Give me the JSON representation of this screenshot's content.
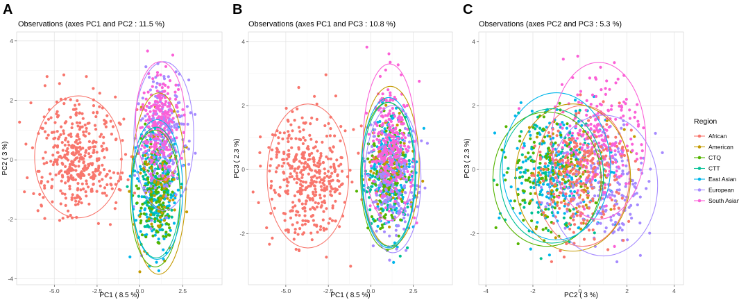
{
  "chart_data": [
    {
      "type": "scatter",
      "panel_label": "A",
      "title": "Observations (axes PC1 and PC2 :  11.5 %)",
      "xlabel": "PC1 ( 8.5 %)",
      "ylabel": "PC2 ( 3 %)",
      "xlim": [
        -7.2,
        4.8
      ],
      "ylim": [
        -4.2,
        4.3
      ],
      "xticks": [
        -5.0,
        -2.5,
        0.0,
        2.5
      ],
      "xtick_labels": [
        "-5.0",
        "-2.5",
        "0.0",
        "2.5"
      ],
      "yticks": [
        -4,
        -2,
        0,
        2,
        4
      ],
      "ytick_labels": [
        "-4",
        "-2",
        "0",
        "2",
        "4"
      ],
      "grid": true,
      "series": [
        {
          "name": "African",
          "cx": -3.6,
          "cy": 0.1,
          "sx": 1.2,
          "sy": 0.95,
          "rx": 2.55,
          "ry": 2.05,
          "n": 420
        },
        {
          "name": "American",
          "cx": 1.1,
          "cy": -0.8,
          "sx": 0.65,
          "sy": 1.15,
          "rx": 1.6,
          "ry": 3.05,
          "n": 90
        },
        {
          "name": "CTQ",
          "cx": 0.9,
          "cy": -1.3,
          "sx": 0.6,
          "sy": 0.9,
          "rx": 1.45,
          "ry": 2.3,
          "n": 130
        },
        {
          "name": "CTT",
          "cx": 0.95,
          "cy": -1.1,
          "sx": 0.6,
          "sy": 0.85,
          "rx": 1.4,
          "ry": 2.2,
          "n": 110
        },
        {
          "name": "East Asian",
          "cx": 1.0,
          "cy": -1.0,
          "sx": 0.65,
          "sy": 0.95,
          "rx": 1.5,
          "ry": 2.35,
          "n": 220
        },
        {
          "name": "European",
          "cx": 1.4,
          "cy": 0.8,
          "sx": 0.7,
          "sy": 1.0,
          "rx": 1.75,
          "ry": 2.5,
          "n": 230
        },
        {
          "name": "South Asian",
          "cx": 1.2,
          "cy": 1.3,
          "sx": 0.55,
          "sy": 0.75,
          "rx": 1.45,
          "ry": 2.0,
          "n": 230
        }
      ]
    },
    {
      "type": "scatter",
      "panel_label": "B",
      "title": "Observations (axes PC1 and PC3 :  10.8 %)",
      "xlabel": "PC1 ( 8.5 %)",
      "ylabel": "PC3 ( 2.3 %)",
      "xlim": [
        -7.2,
        4.8
      ],
      "ylim": [
        -3.6,
        4.3
      ],
      "xticks": [
        -5.0,
        -2.5,
        0.0,
        2.5
      ],
      "xtick_labels": [
        "-5.0",
        "-2.5",
        "0.0",
        "2.5"
      ],
      "yticks": [
        -2,
        0,
        2,
        4
      ],
      "ytick_labels": [
        "-2",
        "0",
        "2",
        "4"
      ],
      "grid": true,
      "series": [
        {
          "name": "African",
          "cx": -3.7,
          "cy": -0.2,
          "sx": 1.15,
          "sy": 1.0,
          "rx": 2.4,
          "ry": 2.25,
          "n": 420
        },
        {
          "name": "American",
          "cx": 1.15,
          "cy": 0.1,
          "sx": 0.65,
          "sy": 0.95,
          "rx": 1.7,
          "ry": 2.5,
          "n": 90
        },
        {
          "name": "CTQ",
          "cx": 1.0,
          "cy": -0.2,
          "sx": 0.62,
          "sy": 0.9,
          "rx": 1.6,
          "ry": 2.3,
          "n": 130
        },
        {
          "name": "CTT",
          "cx": 1.05,
          "cy": -0.15,
          "sx": 0.6,
          "sy": 0.88,
          "rx": 1.55,
          "ry": 2.25,
          "n": 110
        },
        {
          "name": "East Asian",
          "cx": 1.05,
          "cy": -0.1,
          "sx": 0.65,
          "sy": 0.9,
          "rx": 1.6,
          "ry": 2.35,
          "n": 220
        },
        {
          "name": "European",
          "cx": 1.3,
          "cy": -0.3,
          "sx": 0.68,
          "sy": 0.85,
          "rx": 1.65,
          "ry": 2.3,
          "n": 230
        },
        {
          "name": "South Asian",
          "cx": 1.1,
          "cy": 0.85,
          "sx": 0.6,
          "sy": 0.95,
          "rx": 1.55,
          "ry": 2.45,
          "n": 230
        }
      ]
    },
    {
      "type": "scatter",
      "panel_label": "C",
      "title": "Observations (axes PC2 and PC3 :  5.3 %)",
      "xlabel": "PC2 ( 3 %)",
      "ylabel": "PC3 ( 2.3 %)",
      "xlim": [
        -4.3,
        4.4
      ],
      "ylim": [
        -3.6,
        4.3
      ],
      "xticks": [
        -4,
        -2,
        0,
        2,
        4
      ],
      "xtick_labels": [
        "-4",
        "-2",
        "0",
        "2",
        "4"
      ],
      "yticks": [
        -2,
        0,
        2
      ],
      "ytick_labels": [
        "-2",
        "0",
        "2"
      ],
      "extra_ytick_labels": [
        {
          "value": 4,
          "label": "4"
        }
      ],
      "grid": true,
      "series": [
        {
          "name": "African",
          "cx": 0.1,
          "cy": -0.2,
          "sx": 0.95,
          "sy": 1.0,
          "rx": 2.0,
          "ry": 2.2,
          "n": 250
        },
        {
          "name": "American",
          "cx": -0.3,
          "cy": -0.25,
          "sx": 1.05,
          "sy": 0.9,
          "rx": 2.45,
          "ry": 2.3,
          "n": 90
        },
        {
          "name": "CTQ",
          "cx": -1.4,
          "cy": -0.3,
          "sx": 0.95,
          "sy": 0.85,
          "rx": 2.3,
          "ry": 2.1,
          "n": 130
        },
        {
          "name": "CTT",
          "cx": -1.2,
          "cy": -0.2,
          "sx": 0.9,
          "sy": 0.85,
          "rx": 2.2,
          "ry": 2.1,
          "n": 110
        },
        {
          "name": "East Asian",
          "cx": -1.0,
          "cy": 0.1,
          "sx": 0.95,
          "sy": 0.9,
          "rx": 2.3,
          "ry": 2.3,
          "n": 220
        },
        {
          "name": "European",
          "cx": 1.0,
          "cy": -0.5,
          "sx": 0.95,
          "sy": 0.9,
          "rx": 2.3,
          "ry": 2.2,
          "n": 230
        },
        {
          "name": "South Asian",
          "cx": 0.8,
          "cy": 0.9,
          "sx": 0.85,
          "sy": 1.0,
          "rx": 2.0,
          "ry": 2.45,
          "n": 230
        }
      ]
    }
  ],
  "legend": {
    "title": "Region",
    "items": [
      {
        "label": "African",
        "color": "#F8766D"
      },
      {
        "label": "American",
        "color": "#C49A00"
      },
      {
        "label": "CTQ",
        "color": "#53B400"
      },
      {
        "label": "CTT",
        "color": "#00C094"
      },
      {
        "label": "East Asian",
        "color": "#00B6EB"
      },
      {
        "label": "European",
        "color": "#A58AFF"
      },
      {
        "label": "South Asian",
        "color": "#FB61D7"
      }
    ]
  }
}
